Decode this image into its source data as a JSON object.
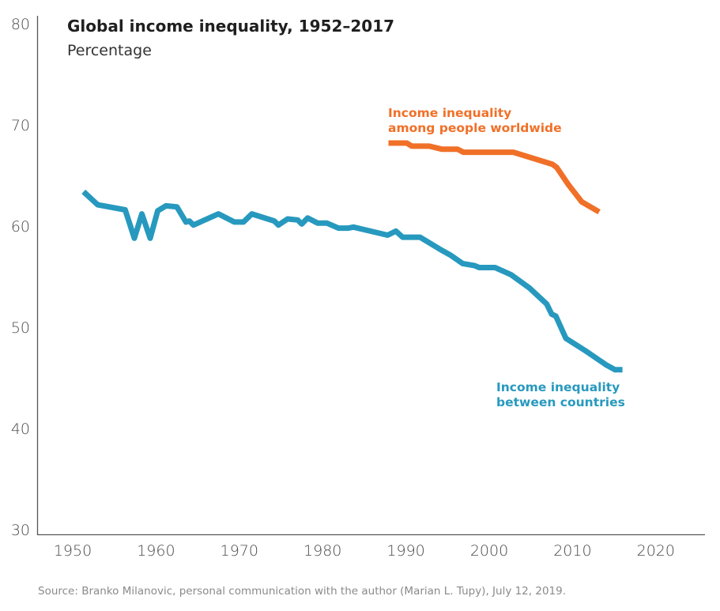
{
  "chart_data": {
    "type": "line",
    "title": "Global income inequality, 1952–2017",
    "subtitle": "Percentage",
    "xlabel": "",
    "ylabel": "Percentage",
    "xlim": [
      1945,
      2026
    ],
    "ylim": [
      30,
      80
    ],
    "x_ticks": [
      1950,
      1960,
      1970,
      1980,
      1990,
      2000,
      2010,
      2020
    ],
    "y_ticks": [
      30,
      40,
      50,
      60,
      70,
      80
    ],
    "grid": false,
    "legend": "inline-labels",
    "series": [
      {
        "name": "Income inequality between countries",
        "label_lines": [
          "Income inequality",
          "between countries"
        ],
        "color": "#2799be",
        "x": [
          1951.3,
          1953,
          1956.3,
          1957.4,
          1958.3,
          1959.3,
          1960.2,
          1961.2,
          1962.5,
          1963.6,
          1964,
          1964.5,
          1967.5,
          1969.4,
          1970.5,
          1971.5,
          1974.2,
          1974.7,
          1975.8,
          1977,
          1977.5,
          1978.2,
          1979.4,
          1980.5,
          1981.9,
          1983.1,
          1983.7,
          1987.8,
          1988.8,
          1989.6,
          1991.7,
          1994.1,
          1995.4,
          1996.8,
          1998.2,
          1998.8,
          2000.7,
          2002.6,
          2004.8,
          2006.9,
          2007.5,
          2008,
          2009.2,
          2011.5,
          2014,
          2015.1,
          2016
        ],
        "values": [
          63.4,
          62.1,
          61.6,
          58.8,
          61.2,
          58.8,
          61.5,
          62.0,
          61.9,
          60.4,
          60.5,
          60.1,
          61.2,
          60.4,
          60.4,
          61.2,
          60.5,
          60.1,
          60.7,
          60.6,
          60.2,
          60.8,
          60.3,
          60.3,
          59.8,
          59.8,
          59.9,
          59.1,
          59.5,
          58.9,
          58.9,
          57.7,
          57.1,
          56.3,
          56.1,
          55.9,
          55.9,
          55.2,
          53.9,
          52.3,
          51.3,
          51.1,
          48.9,
          47.7,
          46.3,
          45.8,
          45.8
        ]
      },
      {
        "name": "Income inequality among people worldwide",
        "label_lines": [
          "Income inequality",
          "among people worldwide"
        ],
        "color": "#f07028",
        "x": [
          1987.9,
          1990.1,
          1990.7,
          1992.8,
          1994.3,
          1996.2,
          1996.9,
          2002.9,
          2007.6,
          2008.1,
          2009.5,
          2011.1,
          2013.2
        ],
        "values": [
          68.2,
          68.2,
          67.9,
          67.9,
          67.6,
          67.6,
          67.3,
          67.3,
          66.1,
          65.8,
          64.1,
          62.4,
          61.4
        ]
      }
    ],
    "source": "Source: Branko Milanovic, personal communication with the author (Marian L. Tupy), July 12, 2019."
  }
}
